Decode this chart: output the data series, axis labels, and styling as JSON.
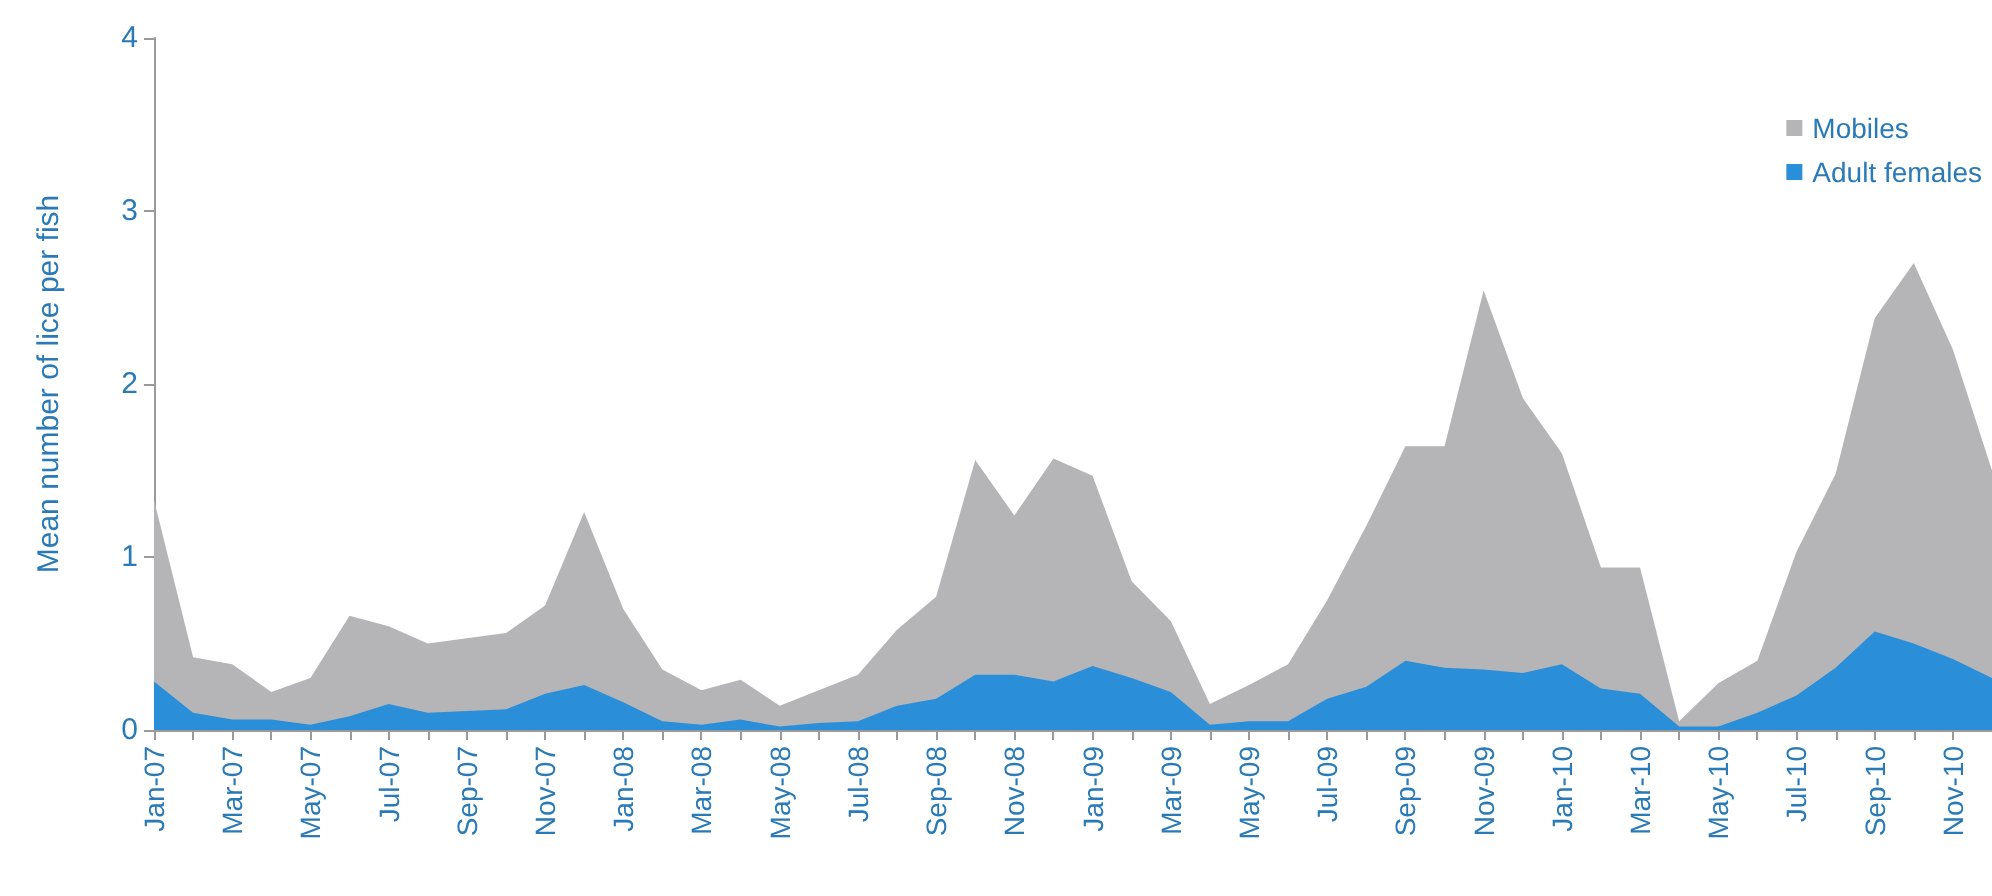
{
  "chart_data": {
    "type": "area",
    "ylabel": "Mean number of lice per fish",
    "categories": [
      "Jan-07",
      null,
      "Mar-07",
      null,
      "May-07",
      null,
      "Jul-07",
      null,
      "Sep-07",
      null,
      "Nov-07",
      null,
      "Jan-08",
      null,
      "Mar-08",
      null,
      "May-08",
      null,
      "Jul-08",
      null,
      "Sep-08",
      null,
      "Nov-08",
      null,
      "Jan-09",
      null,
      "Mar-09",
      null,
      "May-09",
      null,
      "Jul-09",
      null,
      "Sep-09",
      null,
      "Nov-09",
      null,
      "Jan-10",
      null,
      "Mar-10",
      null,
      "May-10",
      null,
      "Jul-10",
      null,
      "Sep-10",
      null,
      "Nov-10",
      null
    ],
    "series": [
      {
        "name": "Mobiles",
        "color": "#b5b5b8",
        "values": [
          1.33,
          0.42,
          0.38,
          0.22,
          0.3,
          0.66,
          0.6,
          0.5,
          0.53,
          0.56,
          0.72,
          1.26,
          0.7,
          0.35,
          0.23,
          0.29,
          0.14,
          0.23,
          0.32,
          0.58,
          0.77,
          1.56,
          1.24,
          1.57,
          1.47,
          0.86,
          0.63,
          0.15,
          0.26,
          0.38,
          0.75,
          1.18,
          1.64,
          1.64,
          2.54,
          1.92,
          1.6,
          0.94,
          0.94,
          0.05,
          0.27,
          0.4,
          1.03,
          1.48,
          2.38,
          2.7,
          2.2,
          1.5
        ]
      },
      {
        "name": "Adult females",
        "color": "#2a8fd8",
        "values": [
          0.28,
          0.1,
          0.06,
          0.06,
          0.03,
          0.08,
          0.15,
          0.1,
          0.11,
          0.12,
          0.21,
          0.26,
          0.16,
          0.05,
          0.03,
          0.06,
          0.02,
          0.04,
          0.05,
          0.14,
          0.18,
          0.32,
          0.32,
          0.28,
          0.37,
          0.3,
          0.22,
          0.03,
          0.05,
          0.05,
          0.18,
          0.25,
          0.4,
          0.36,
          0.35,
          0.33,
          0.38,
          0.24,
          0.21,
          0.02,
          0.02,
          0.1,
          0.2,
          0.36,
          0.57,
          0.5,
          0.41,
          0.3
        ]
      }
    ],
    "ylim": [
      0,
      4
    ],
    "yticks": [
      0,
      1,
      2,
      3,
      4
    ],
    "grid": false,
    "legend": "top right"
  }
}
